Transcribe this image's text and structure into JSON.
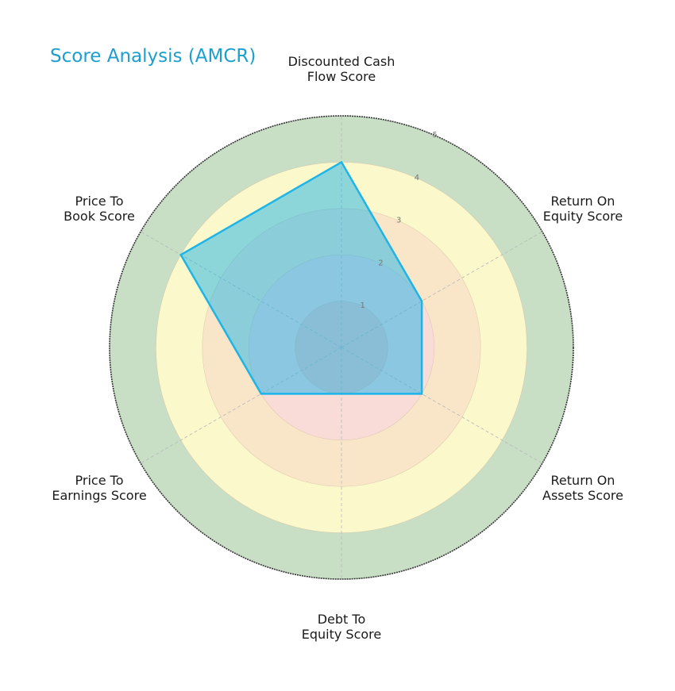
{
  "title": "Score Analysis (AMCR)",
  "chart_data": {
    "type": "radar",
    "title": "Score Analysis (AMCR)",
    "categories": [
      "Discounted Cash Flow Score",
      "Return On Equity Score",
      "Return On Assets Score",
      "Debt To Equity Score",
      "Price To Earnings Score",
      "Price To Book Score"
    ],
    "category_lines": [
      [
        "Discounted Cash",
        "Flow Score"
      ],
      [
        "Return On",
        "Equity Score"
      ],
      [
        "Return On",
        "Assets Score"
      ],
      [
        "Debt To",
        "Equity Score"
      ],
      [
        "Price To",
        "Earnings Score"
      ],
      [
        "Price To",
        "Book Score"
      ]
    ],
    "series": [
      {
        "name": "AMCR",
        "values": [
          4,
          2,
          2,
          1,
          2,
          4
        ],
        "color": "#1eb4e8"
      }
    ],
    "rlim": [
      0,
      5
    ],
    "rticks": [
      "1",
      "2",
      "3",
      "4",
      "5"
    ],
    "zones": [
      {
        "from": 0,
        "to": 1,
        "color": "#f4c9c5"
      },
      {
        "from": 1,
        "to": 2,
        "color": "#f9dbd8"
      },
      {
        "from": 2,
        "to": 3,
        "color": "#f9e6c8"
      },
      {
        "from": 3,
        "to": 4,
        "color": "#fbf8cb"
      },
      {
        "from": 4,
        "to": 5,
        "color": "#c8dfc6"
      }
    ],
    "grid": true,
    "legend": "none"
  }
}
